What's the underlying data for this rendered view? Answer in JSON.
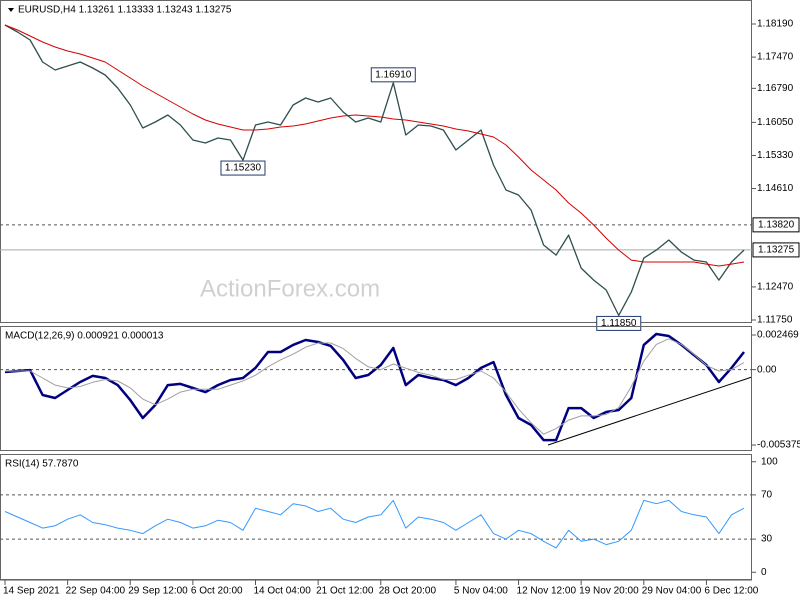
{
  "chart_data": [
    {
      "type": "line",
      "title": "EURUSD,H4  1.13261 1.13333 1.13243 1.13275",
      "watermark": "ActionForex.com",
      "categories": [
        "14 Sep 2021",
        null,
        null,
        null,
        null,
        "22 Sep 04:00",
        null,
        null,
        null,
        null,
        "29 Sep 12:00",
        null,
        null,
        null,
        null,
        "6 Oct 20:00",
        null,
        null,
        null,
        null,
        "14 Oct 04:00",
        null,
        null,
        null,
        null,
        "21 Oct 12:00",
        null,
        null,
        null,
        null,
        "28 Oct 20:00",
        null,
        null,
        null,
        null,
        null,
        "5 Nov 04:00",
        null,
        null,
        null,
        null,
        "12 Nov 12:00",
        null,
        null,
        null,
        null,
        "19 Nov 20:00",
        null,
        null,
        null,
        null,
        "29 Nov 04:00",
        null,
        null,
        null,
        null,
        "6 Dec 12:00",
        null,
        null,
        null
      ],
      "series": [
        {
          "color": "#2f4f4f",
          "values": [
            1.18168,
            1.18016,
            1.17842,
            1.17363,
            1.17189,
            1.17276,
            1.17363,
            1.17232,
            1.1708,
            1.16797,
            1.16427,
            1.15927,
            1.16057,
            1.1621,
            1.15992,
            1.15666,
            1.156,
            1.15709,
            1.15666,
            1.1523,
            1.15992,
            1.16057,
            1.15992,
            1.16427,
            1.1658,
            1.16492,
            1.1658,
            1.16275,
            1.16057,
            1.16144,
            1.16057,
            1.1691,
            1.15774,
            1.15992,
            1.1597,
            1.15883,
            1.15448,
            1.15666,
            1.15883,
            1.15122,
            1.14578,
            1.14469,
            1.14142,
            1.13381,
            1.13163,
            1.13598,
            1.1288,
            1.12619,
            1.12402,
            1.1185,
            1.12358,
            1.13098,
            1.13272,
            1.1349,
            1.13228,
            1.13054,
            1.13011,
            1.12619,
            1.13011,
            1.13272
          ]
        },
        {
          "color": "#d40000",
          "values": [
            1.18168,
            1.18059,
            1.17929,
            1.17798,
            1.17689,
            1.17602,
            1.17537,
            1.1745,
            1.17363,
            1.17189,
            1.17015,
            1.16841,
            1.16688,
            1.16536,
            1.16384,
            1.16231,
            1.16101,
            1.16014,
            1.15948,
            1.15883,
            1.15883,
            1.15905,
            1.15948,
            1.1597,
            1.16014,
            1.16079,
            1.16144,
            1.16188,
            1.1621,
            1.16188,
            1.16166,
            1.16123,
            1.16101,
            1.16057,
            1.16014,
            1.1597,
            1.15905,
            1.15861,
            1.15796,
            1.15731,
            1.15557,
            1.15296,
            1.15013,
            1.14795,
            1.14578,
            1.14295,
            1.14077,
            1.13816,
            1.13533,
            1.13272,
            1.13054,
            1.13011,
            1.13011,
            1.13011,
            1.13011,
            1.13011,
            1.12967,
            1.12924,
            1.12967,
            1.13011
          ]
        }
      ],
      "ylim": [
        1.11685,
        1.18712
      ],
      "yticks": [
        {
          "value": 1.1819,
          "label": "1.18190"
        },
        {
          "value": 1.1747,
          "label": "1.17470"
        },
        {
          "value": 1.1679,
          "label": "1.16790"
        },
        {
          "value": 1.1605,
          "label": "1.16050"
        },
        {
          "value": 1.1533,
          "label": "1.15330"
        },
        {
          "value": 1.1461,
          "label": "1.14610"
        },
        {
          "value": 1.1247,
          "label": "1.12470"
        },
        {
          "value": 1.1175,
          "label": "1.11750"
        }
      ],
      "levels": [
        {
          "value": 1.1382,
          "label": "1.13820",
          "style": "dashed"
        },
        {
          "value": 1.13275,
          "label": "1.13275",
          "style": "solid"
        }
      ],
      "annotations": [
        {
          "value": 1.1691,
          "label": "1.16910"
        },
        {
          "value": 1.1523,
          "label": "1.15230"
        },
        {
          "value": 1.1185,
          "label": "1.11850"
        }
      ]
    },
    {
      "type": "line",
      "title": "MACD(12,26,9) 0.000921 0.000013",
      "series": [
        {
          "color": "#000080",
          "values": [
            -0.00017,
            -0.0001,
            -3e-05,
            -0.00181,
            -0.00202,
            -0.00145,
            -0.00088,
            -0.00045,
            -0.0006,
            -0.0011,
            -0.00217,
            -0.00345,
            -0.00252,
            -0.0011,
            -0.00102,
            -0.00131,
            -0.0016,
            -0.0011,
            -0.00074,
            -0.0006,
            0.00012,
            0.00126,
            0.00126,
            0.00176,
            0.00211,
            0.00197,
            0.00169,
            0.00069,
            -0.0006,
            -0.00038,
            0.00033,
            0.00154,
            -0.0011,
            -0.00038,
            -0.0006,
            -0.00074,
            -0.0011,
            -0.0006,
            0.00012,
            0.00054,
            -0.00181,
            -0.00345,
            -0.00395,
            -0.00502,
            -0.00502,
            -0.00274,
            -0.00274,
            -0.00345,
            -0.00302,
            -0.00288,
            -0.00202,
            0.00176,
            0.00254,
            0.0024,
            0.00176,
            0.00104,
            0.00033,
            -0.00088,
            0.00012,
            0.00126
          ]
        },
        {
          "color": "#a0a0a0",
          "values": [
            -0.0001,
            -0.0001,
            -0.0001,
            -0.0006,
            -0.0011,
            -0.0013,
            -0.0012,
            -0.0009,
            -0.0007,
            -0.0008,
            -0.0013,
            -0.0021,
            -0.0025,
            -0.0021,
            -0.0016,
            -0.0014,
            -0.0014,
            -0.0014,
            -0.0011,
            -0.0008,
            -0.0004,
            0.0002,
            0.0007,
            0.0011,
            0.0016,
            0.0019,
            0.0019,
            0.0015,
            0.0008,
            0.0002,
            0.0,
            0.0004,
            0.0001,
            -0.0002,
            -0.0004,
            -0.0007,
            -0.0007,
            -0.0004,
            -0.0001,
            -0.0006,
            -0.0016,
            -0.0028,
            -0.0038,
            -0.0046,
            -0.0042,
            -0.0036,
            -0.0033,
            -0.0033,
            -0.0032,
            -0.0027,
            -0.0012,
            0.0006,
            0.0018,
            0.0022,
            0.0018,
            0.0011,
            0.0003,
            -0.0001,
            0.0,
            0.0005
          ]
        }
      ],
      "ylim": [
        -0.0058,
        0.00311
      ],
      "yticks": [
        0.002469,
        {
          "value": 0,
          "label": "0.00"
        },
        -0.005375
      ],
      "levels": [
        {
          "value": 0,
          "style": "dashed"
        }
      ]
    },
    {
      "type": "line",
      "title": "RSI(14) 57.7870",
      "series": [
        {
          "color": "#3399ff",
          "values": [
            55,
            50,
            45,
            40,
            42,
            48,
            52,
            45,
            43,
            40,
            38,
            35,
            42,
            48,
            45,
            40,
            42,
            47,
            45,
            38,
            58,
            55,
            52,
            62,
            60,
            55,
            58,
            48,
            45,
            50,
            52,
            65,
            40,
            50,
            48,
            45,
            38,
            45,
            52,
            35,
            30,
            38,
            35,
            28,
            22,
            38,
            28,
            30,
            25,
            28,
            38,
            65,
            62,
            65,
            55,
            52,
            50,
            35,
            52,
            58
          ]
        }
      ],
      "ylim": [
        -7,
        107
      ],
      "yticks": [
        100,
        70,
        30,
        0
      ],
      "levels": [
        {
          "value": 70,
          "style": "dashed"
        },
        {
          "value": 30,
          "style": "dashed"
        }
      ]
    }
  ]
}
